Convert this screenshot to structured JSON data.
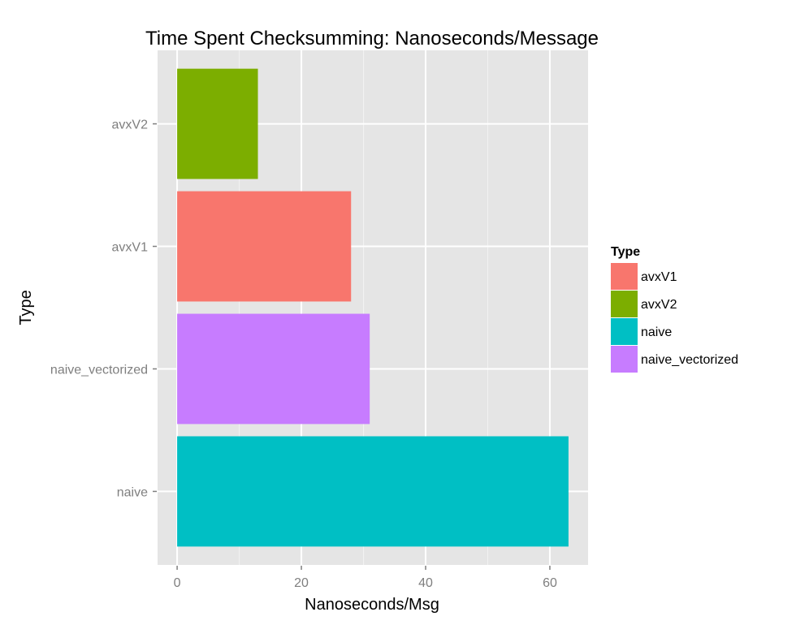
{
  "chart_data": {
    "type": "bar",
    "orientation": "horizontal",
    "title": "Time Spent Checksumming: Nanoseconds/Message",
    "xlabel": "Nanoseconds/Msg",
    "ylabel": "Type",
    "categories": [
      "naive",
      "naive_vectorized",
      "avxV1",
      "avxV2"
    ],
    "values": [
      63,
      31,
      28,
      13
    ],
    "colors": [
      "#00BFC4",
      "#C77CFF",
      "#F8766D",
      "#7CAE00"
    ],
    "xlim": [
      -3.15,
      66.15
    ],
    "xticks": [
      0,
      20,
      40,
      60
    ],
    "xtick_labels": [
      "0",
      "20",
      "40",
      "60"
    ],
    "grid": true,
    "background": "#E5E5E5",
    "legend": {
      "title": "Type",
      "position": "right",
      "entries": [
        {
          "label": "avxV1",
          "color": "#F8766D"
        },
        {
          "label": "avxV2",
          "color": "#7CAE00"
        },
        {
          "label": "naive",
          "color": "#00BFC4"
        },
        {
          "label": "naive_vectorized",
          "color": "#C77CFF"
        }
      ]
    }
  }
}
